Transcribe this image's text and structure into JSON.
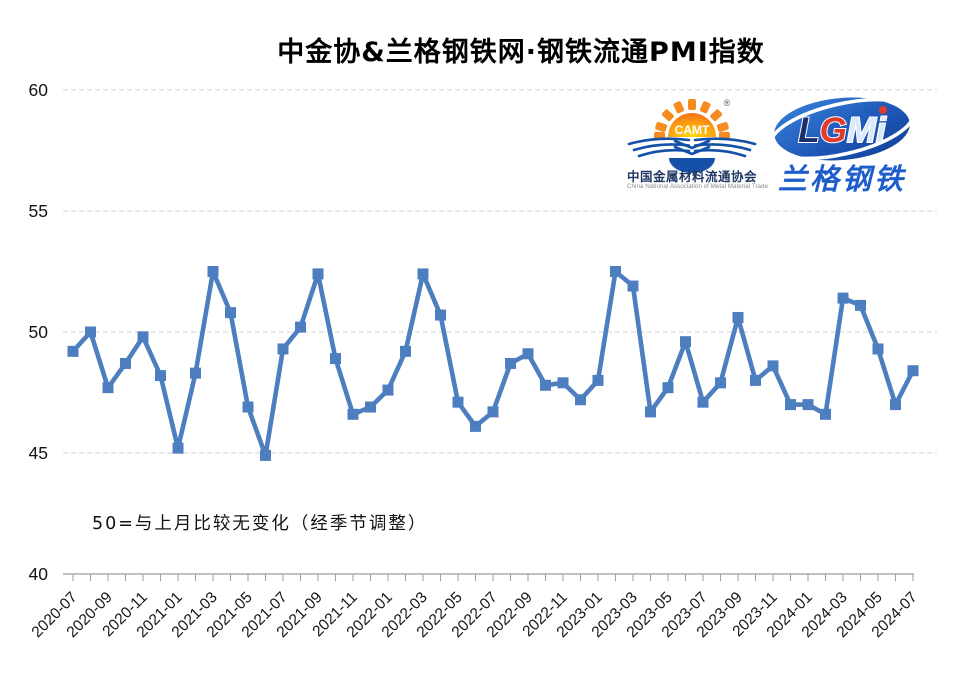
{
  "title": "中金协&兰格钢铁网·钢铁流通PMI指数",
  "annotation": "50=与上月比较无变化（经季节调整）",
  "logos": {
    "camt": {
      "abbr": "CAMT",
      "registered_mark": "®",
      "cn_name": "中国金属材料流通协会",
      "en_name": "China National Association of Metal Material Trade"
    },
    "lgmi": {
      "letter_l": "L",
      "letter_g": "G",
      "letter_m": "M",
      "letter_i": "i",
      "cn_name": "兰格钢铁"
    }
  },
  "chart_data": {
    "type": "line",
    "title": "中金协&兰格钢铁网·钢铁流通PMI指数",
    "note": "50=与上月比较无变化（经季节调整）",
    "series_name": "钢铁流通PMI指数",
    "series_color": "#4d7ebf",
    "marker": "square",
    "grid": "horizontal dashed",
    "ylim": [
      40,
      60
    ],
    "yticks": [
      60,
      55,
      50,
      45,
      40
    ],
    "xtick_labels": [
      "2020-07",
      "2020-09",
      "2020-11",
      "2021-01",
      "2021-03",
      "2021-05",
      "2021-07",
      "2021-09",
      "2021-11",
      "2022-01",
      "2022-03",
      "2022-05",
      "2022-07",
      "2022-09",
      "2022-11",
      "2023-01",
      "2023-03",
      "2023-05",
      "2023-07",
      "2023-09",
      "2023-11",
      "2024-01",
      "2024-03",
      "2024-05",
      "2024-07"
    ],
    "x": [
      "2020-07",
      "2020-08",
      "2020-09",
      "2020-10",
      "2020-11",
      "2020-12",
      "2021-01",
      "2021-02",
      "2021-03",
      "2021-04",
      "2021-05",
      "2021-06",
      "2021-07",
      "2021-08",
      "2021-09",
      "2021-10",
      "2021-11",
      "2021-12",
      "2022-01",
      "2022-02",
      "2022-03",
      "2022-04",
      "2022-05",
      "2022-06",
      "2022-07",
      "2022-08",
      "2022-09",
      "2022-10",
      "2022-11",
      "2022-12",
      "2023-01",
      "2023-02",
      "2023-03",
      "2023-04",
      "2023-05",
      "2023-06",
      "2023-07",
      "2023-08",
      "2023-09",
      "2023-10",
      "2023-11",
      "2023-12",
      "2024-01",
      "2024-02",
      "2024-03",
      "2024-04",
      "2024-05",
      "2024-06",
      "2024-07"
    ],
    "values": [
      49.2,
      50.0,
      47.7,
      48.7,
      49.8,
      48.2,
      45.2,
      48.3,
      52.5,
      50.8,
      46.9,
      44.9,
      49.3,
      50.2,
      52.4,
      48.9,
      46.6,
      46.9,
      47.6,
      49.2,
      52.4,
      50.7,
      47.1,
      46.1,
      46.7,
      48.7,
      49.1,
      47.8,
      47.9,
      47.2,
      48.0,
      52.5,
      51.9,
      46.7,
      47.7,
      49.6,
      47.1,
      47.9,
      50.6,
      48.0,
      48.6,
      47.0,
      47.0,
      46.6,
      51.4,
      51.1,
      49.3,
      47.0,
      48.4
    ]
  }
}
